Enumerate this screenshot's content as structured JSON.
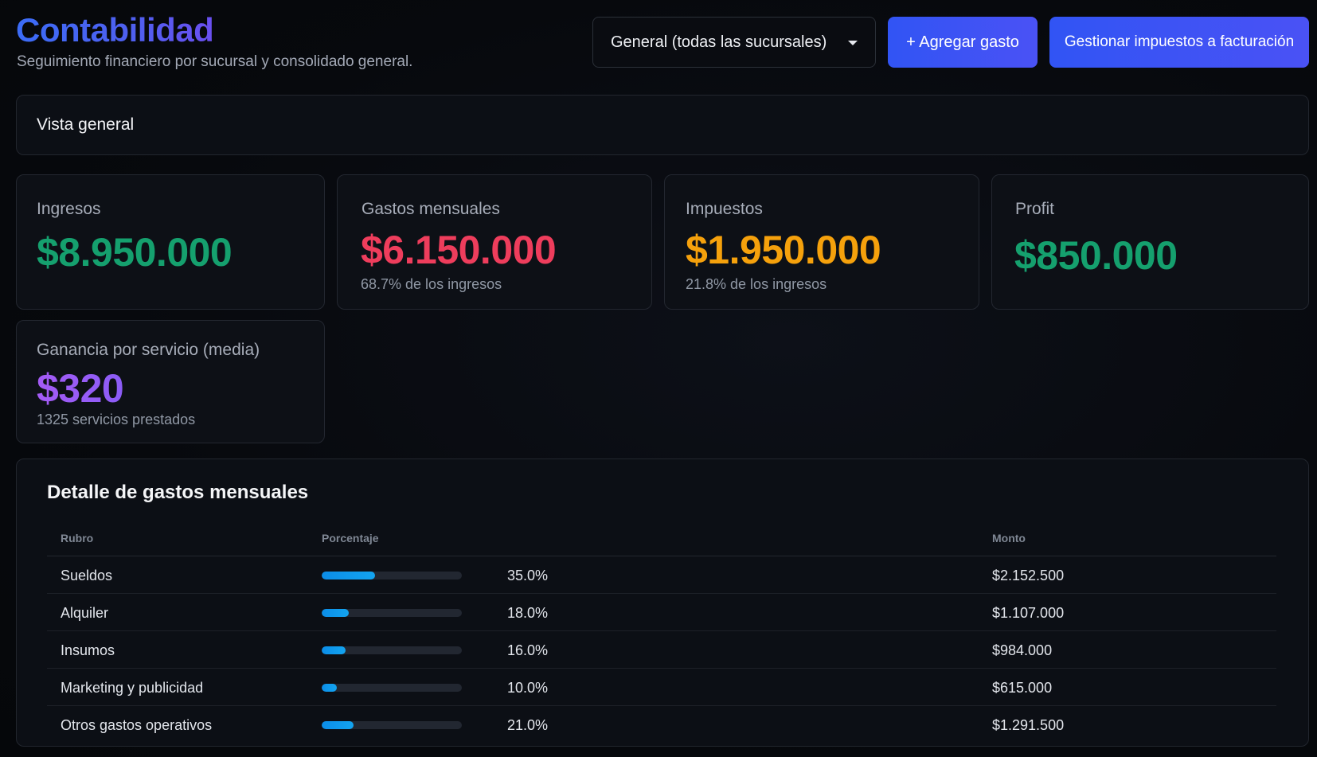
{
  "header": {
    "title": "Contabilidad",
    "subtitle": "Seguimiento financiero por sucursal y consolidado general.",
    "branch_select": {
      "selected": "General (todas las sucursales)"
    },
    "add_expense_label": "+ Agregar gasto",
    "manage_taxes_label": "Gestionar impuestos a facturación"
  },
  "overview": {
    "label": "Vista general"
  },
  "cards": {
    "ingresos": {
      "label": "Ingresos",
      "value": "$8.950.000"
    },
    "gastos": {
      "label": "Gastos mensuales",
      "value": "$6.150.000",
      "note": "68.7% de los ingresos"
    },
    "impuestos": {
      "label": "Impuestos",
      "value": "$1.950.000",
      "note": "21.8% de los ingresos"
    },
    "profit": {
      "label": "Profit",
      "value": "$850.000"
    },
    "ganancia": {
      "label": "Ganancia por servicio (media)",
      "value": "$320",
      "note": "1325 servicios prestados"
    }
  },
  "expenses": {
    "title": "Detalle de gastos mensuales",
    "columns": {
      "rubro": "Rubro",
      "porcentaje": "Porcentaje",
      "monto": "Monto"
    },
    "rows": [
      {
        "rubro": "Sueldos",
        "percent": 35.0,
        "percent_label": "35.0%",
        "monto": "$2.152.500"
      },
      {
        "rubro": "Alquiler",
        "percent": 18.0,
        "percent_label": "18.0%",
        "monto": "$1.107.000"
      },
      {
        "rubro": "Insumos",
        "percent": 16.0,
        "percent_label": "16.0%",
        "monto": "$984.000"
      },
      {
        "rubro": "Marketing y publicidad",
        "percent": 10.0,
        "percent_label": "10.0%",
        "monto": "$615.000"
      },
      {
        "rubro": "Otros gastos operativos",
        "percent": 21.0,
        "percent_label": "21.0%",
        "monto": "$1.291.500"
      }
    ]
  },
  "colors": {
    "accent": "#3b5cf6",
    "income": "#15a06e",
    "expenses": "#ee3d5c",
    "taxes": "#f5a10c",
    "service_gain": "#a45bf5",
    "bar": "#0b8de8"
  }
}
